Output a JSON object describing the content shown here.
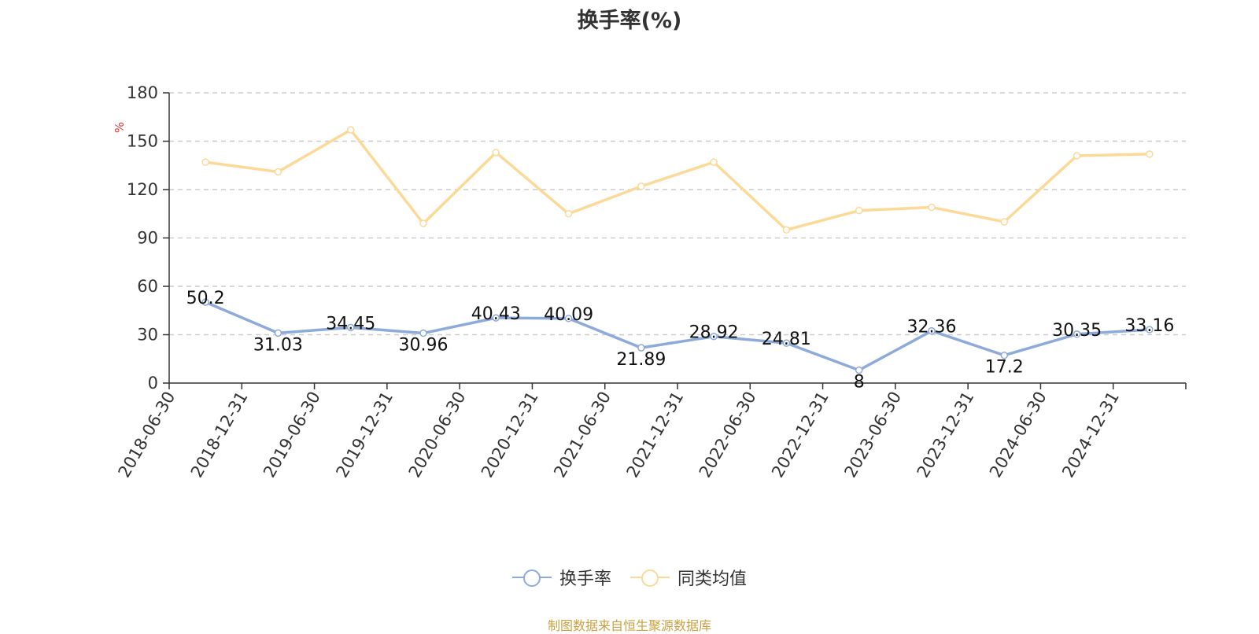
{
  "title": "换手率(%)",
  "source_note": "制图数据来自恒生聚源数据库",
  "chart_data": {
    "type": "line",
    "title": "换手率(%)",
    "ylabel": "%",
    "xlabel": "",
    "ylim": [
      0,
      180
    ],
    "yticks": [
      0,
      30,
      60,
      90,
      120,
      150,
      180
    ],
    "grid": true,
    "legend_position": "bottom",
    "categories": [
      "2018-06-30",
      "2018-12-31",
      "2019-06-30",
      "2019-12-31",
      "2020-06-30",
      "2020-12-31",
      "2021-06-30",
      "2021-12-31",
      "2022-06-30",
      "2022-12-31",
      "2023-06-30",
      "2023-12-31",
      "2024-06-30",
      "2024-12-31"
    ],
    "series": [
      {
        "name": "换手率",
        "color": "#8eaadb",
        "show_labels": true,
        "values": [
          50.2,
          31.03,
          34.45,
          30.96,
          40.43,
          40.09,
          21.89,
          28.92,
          24.81,
          8,
          32.36,
          17.2,
          30.35,
          33.16
        ]
      },
      {
        "name": "同类均值",
        "color": "#fdd998",
        "show_labels": false,
        "values": [
          137,
          131,
          157,
          99,
          143,
          105,
          122,
          137,
          95,
          107,
          109,
          100,
          141,
          142
        ]
      }
    ]
  }
}
